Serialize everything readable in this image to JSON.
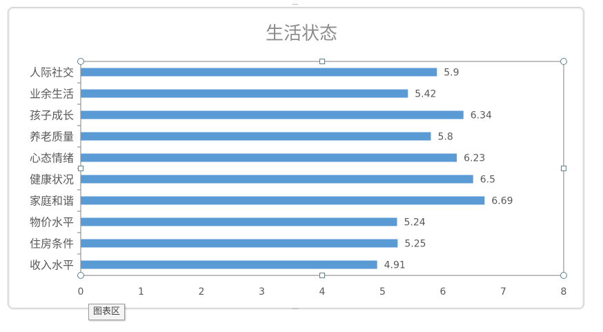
{
  "chart_data": {
    "type": "bar",
    "orientation": "horizontal",
    "title": "生活状态",
    "categories": [
      "人际社交",
      "业余生活",
      "孩子成长",
      "养老质量",
      "心态情绪",
      "健康状况",
      "家庭和谐",
      "物价水平",
      "住房条件",
      "收入水平"
    ],
    "values": [
      5.9,
      5.42,
      6.34,
      5.8,
      6.23,
      6.5,
      6.69,
      5.24,
      5.25,
      4.91
    ],
    "data_labels": [
      "5.9",
      "5.42",
      "6.34",
      "5.8",
      "6.23",
      "6.5",
      "6.69",
      "5.24",
      "5.25",
      "4.91"
    ],
    "xlim": [
      0,
      8
    ],
    "x_ticks": [
      "0",
      "1",
      "2",
      "3",
      "4",
      "5",
      "6",
      "7",
      "8"
    ],
    "grid": false,
    "bar_color": "#5b9bd5",
    "text_color": "#595959",
    "axis_color": "#7f7f7f"
  },
  "tooltip": {
    "label": "图表区"
  }
}
